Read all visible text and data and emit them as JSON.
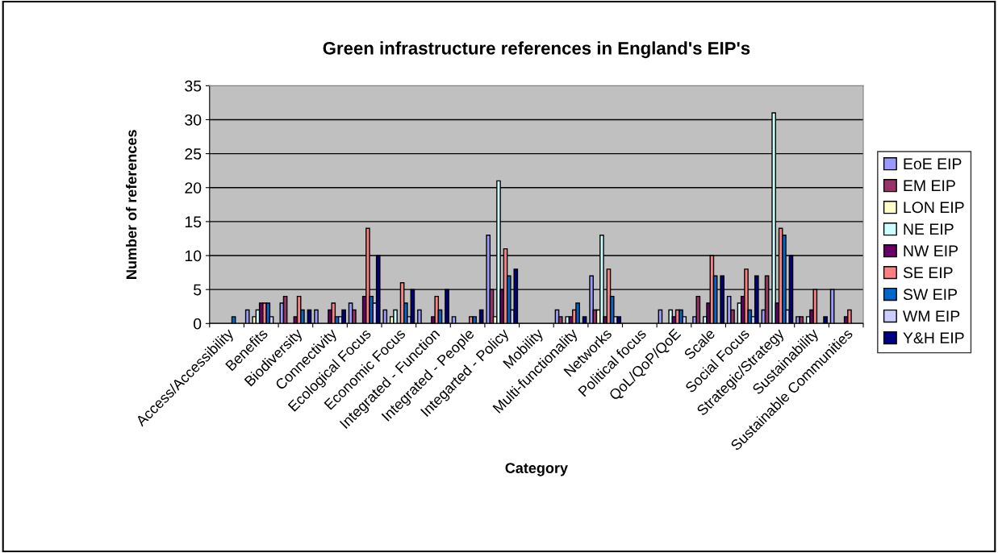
{
  "chart_data": {
    "type": "bar",
    "title": "Green infrastructure references in England's EIP's",
    "xlabel": "Category",
    "ylabel": "Number of references",
    "categories": [
      "Access/Accessibility",
      "Benefits",
      "Biodiversity",
      "Connectivity",
      "Ecological Focus",
      "Economic Focus",
      "Integrated - Function",
      "Integrated - People",
      "Integarted - Policy",
      "Mobility",
      "Multi-functionality",
      "Networks",
      "Political focus",
      "QoL/QoP/QoE",
      "Scale",
      "Social Focus",
      "Strategic/Strategy",
      "Sustainability",
      "Sustainable Communities"
    ],
    "series": [
      {
        "name": "EoE EIP",
        "color": "#9999ff",
        "values": [
          null,
          2,
          3,
          2,
          3,
          2,
          2,
          1,
          13,
          null,
          2,
          7,
          null,
          2,
          1,
          4,
          2,
          1,
          5
        ]
      },
      {
        "name": "EM EIP",
        "color": "#993366",
        "values": [
          null,
          null,
          4,
          null,
          2,
          null,
          null,
          null,
          5,
          null,
          1,
          2,
          null,
          null,
          4,
          2,
          7,
          1,
          null
        ]
      },
      {
        "name": "LON EIP",
        "color": "#ffffcc",
        "values": [
          null,
          1,
          null,
          null,
          null,
          1,
          null,
          null,
          1,
          null,
          null,
          2,
          null,
          null,
          null,
          null,
          null,
          null,
          null
        ]
      },
      {
        "name": "NE EIP",
        "color": "#ccffff",
        "values": [
          null,
          2,
          null,
          null,
          null,
          2,
          null,
          null,
          21,
          null,
          1,
          13,
          null,
          2,
          1,
          3,
          31,
          1,
          null
        ]
      },
      {
        "name": "NW EIP",
        "color": "#660066",
        "values": [
          null,
          3,
          1,
          2,
          4,
          null,
          1,
          null,
          5,
          null,
          1,
          1,
          null,
          1,
          3,
          4,
          3,
          2,
          1
        ]
      },
      {
        "name": "SE EIP",
        "color": "#ff8080",
        "values": [
          null,
          3,
          4,
          3,
          14,
          6,
          4,
          1,
          11,
          null,
          2,
          8,
          null,
          2,
          10,
          8,
          14,
          5,
          2
        ]
      },
      {
        "name": "SW EIP",
        "color": "#0066cc",
        "values": [
          1,
          3,
          2,
          1,
          4,
          3,
          2,
          1,
          7,
          null,
          3,
          4,
          null,
          2,
          7,
          2,
          13,
          null,
          null
        ]
      },
      {
        "name": "WM EIP",
        "color": "#ccccff",
        "values": [
          null,
          1,
          null,
          1,
          3,
          1,
          null,
          null,
          2,
          null,
          null,
          1,
          null,
          1,
          null,
          1,
          2,
          null,
          null
        ]
      },
      {
        "name": "Y&H EIP",
        "color": "#000080",
        "values": [
          null,
          null,
          2,
          2,
          10,
          5,
          5,
          2,
          8,
          null,
          1,
          1,
          null,
          null,
          7,
          7,
          10,
          1,
          null
        ]
      }
    ],
    "ylim": [
      0,
      35
    ],
    "yticks": [
      0,
      5,
      10,
      15,
      20,
      25,
      30,
      35
    ],
    "grid": "y",
    "legend": "right"
  }
}
